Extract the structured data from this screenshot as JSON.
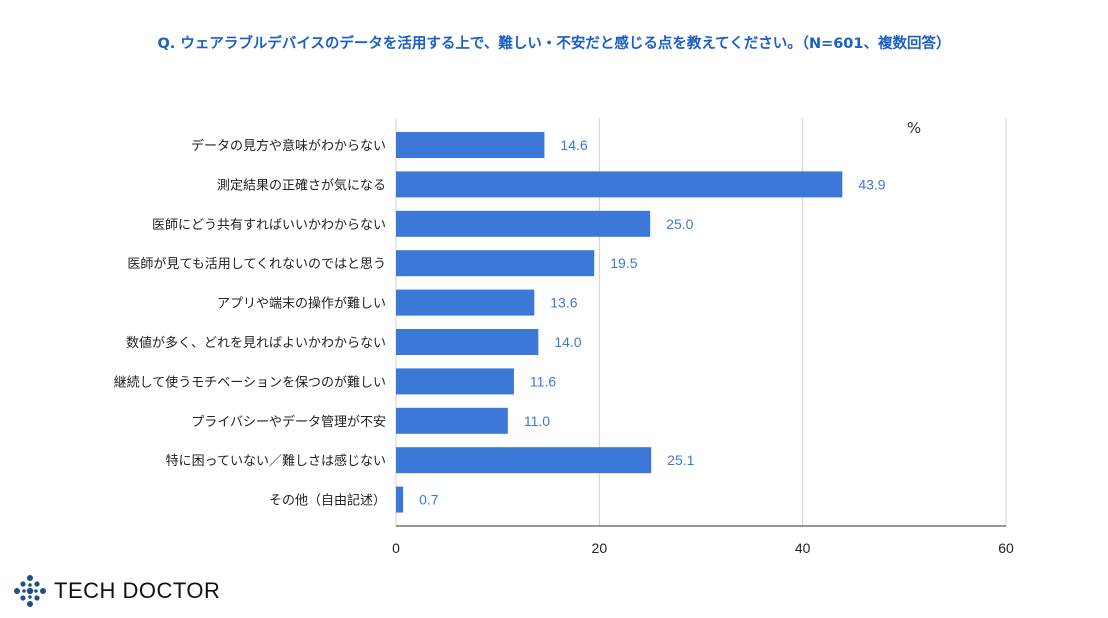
{
  "chart_data": {
    "type": "bar",
    "orientation": "horizontal",
    "title": "Q. ウェアラブルデバイスのデータを活用する上で、難しい・不安だと感じる点を教えてください。（N=601、複数回答）",
    "unit_label": "%",
    "categories": [
      "データの見方や意味がわからない",
      "測定結果の正確さが気になる",
      "医師にどう共有すればいいかわからない",
      "医師が見ても活用してくれないのではと思う",
      "アプリや端末の操作が難しい",
      "数値が多く、どれを見ればよいかわからない",
      "継続して使うモチベーションを保つのが難しい",
      "プライバシーやデータ管理が不安",
      "特に困っていない／難しさは感じない",
      "その他（自由記述）"
    ],
    "values": [
      14.6,
      43.9,
      25.0,
      19.5,
      13.6,
      14.0,
      11.6,
      11.0,
      25.1,
      0.7
    ],
    "value_labels": [
      "14.6",
      "43.9",
      "25.0",
      "19.5",
      "13.6",
      "14.0",
      "11.6",
      "11.0",
      "25.1",
      "0.7"
    ],
    "xlim": [
      0,
      60
    ],
    "xticks": [
      "0",
      "20",
      "40",
      "60"
    ],
    "grid": true,
    "bar_color": "#3c78d8",
    "title_color": "#1a5fc8"
  },
  "brand": {
    "name": "TECH DOCTOR",
    "color": "#1f4e8c"
  }
}
